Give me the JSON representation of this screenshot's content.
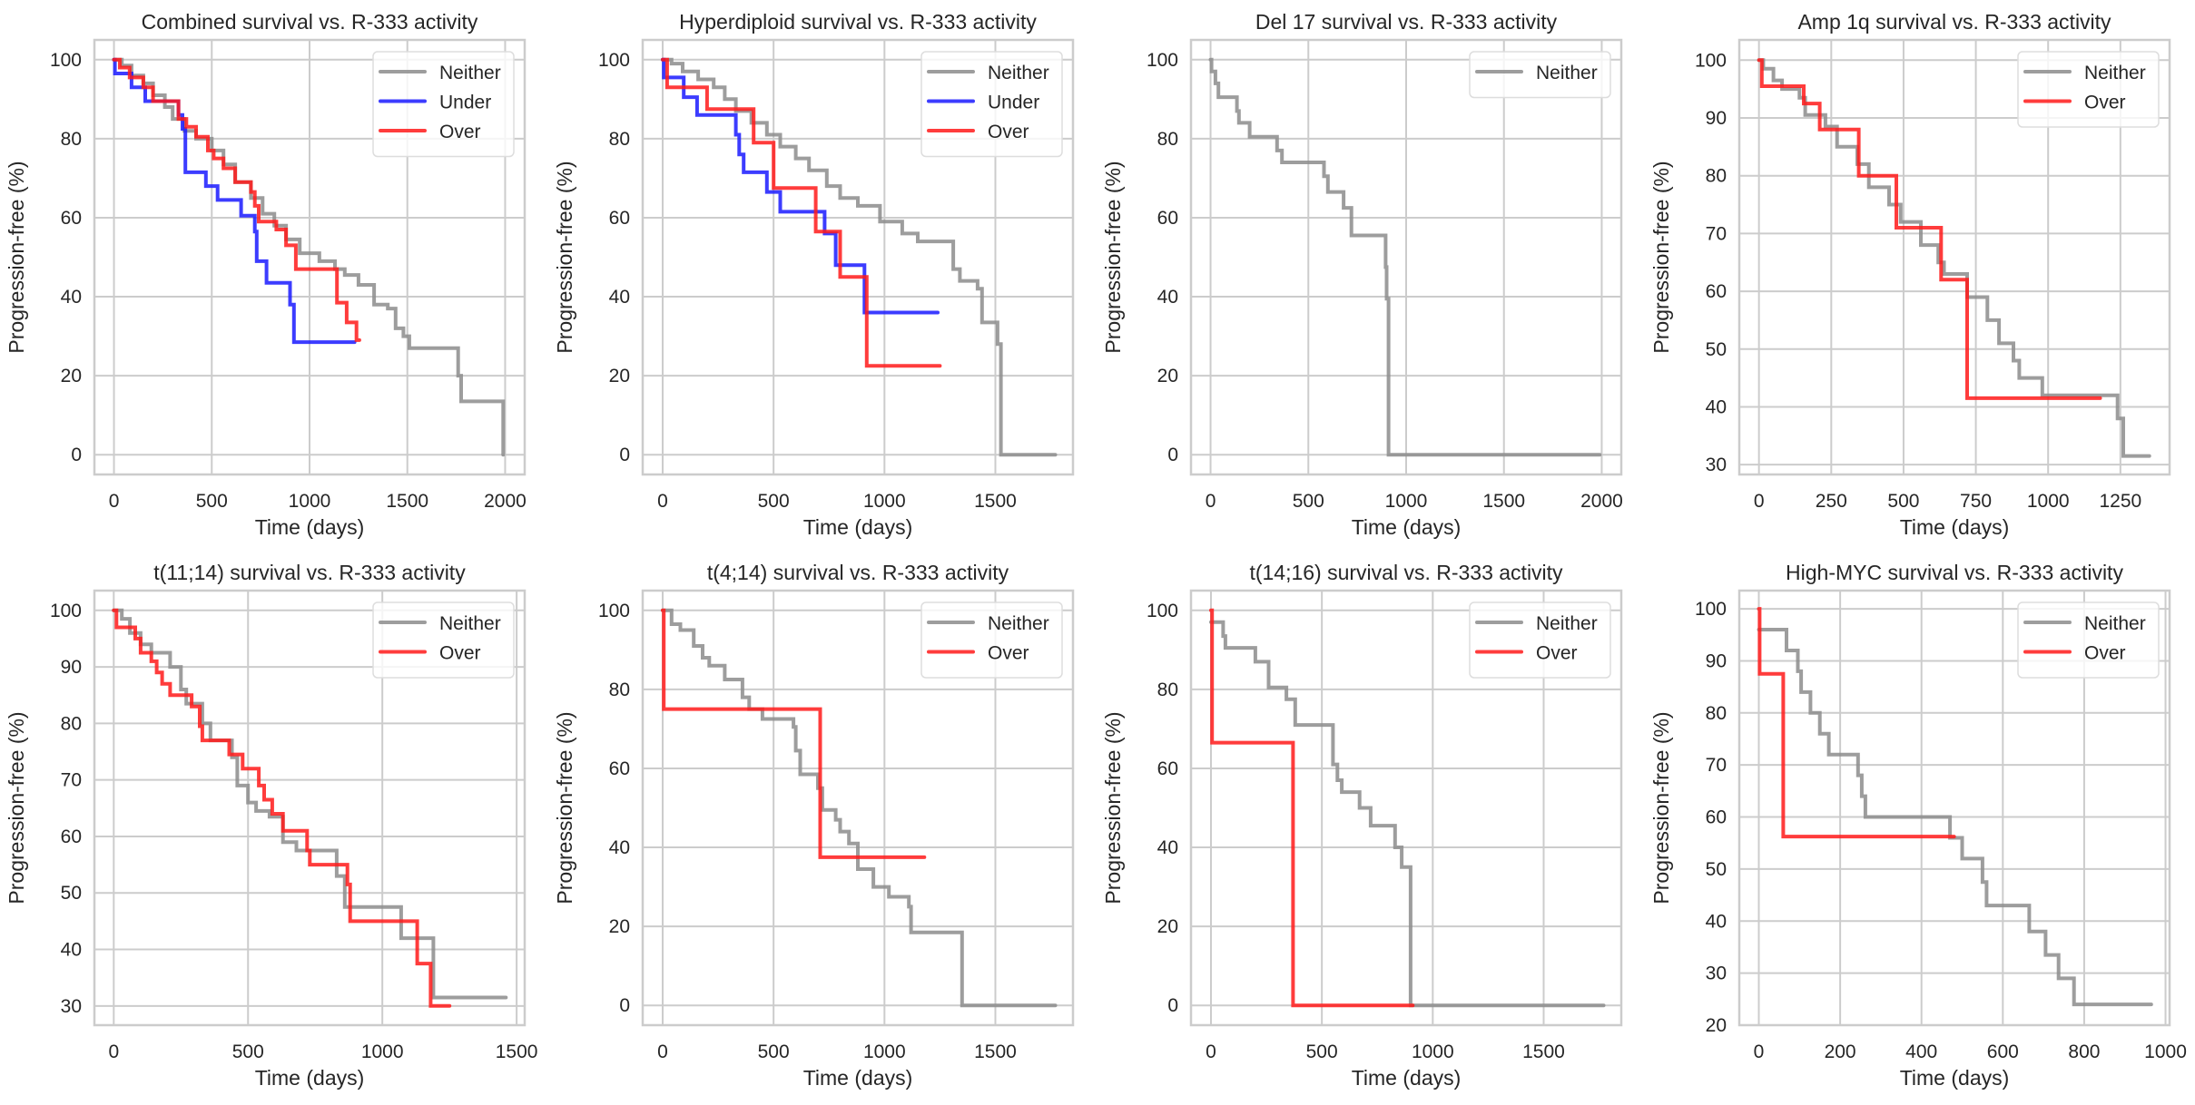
{
  "figure": {
    "domain": "Kaplan-Meier progression-free survival curves by R-333 activity",
    "colors": {
      "Neither": "#8c8c8c",
      "Under": "#1a1aff",
      "Over": "#ff1a1a",
      "grid": "#cccccc",
      "text": "#262626"
    }
  },
  "chart_data": [
    {
      "type": "line",
      "title": "Combined survival vs. R-333 activity",
      "xlabel": "Time (days)",
      "ylabel": "Progression-free (%)",
      "xlim": [
        -100,
        2100
      ],
      "ylim": [
        -5,
        105
      ],
      "xticks": [
        0,
        500,
        1000,
        1500,
        2000
      ],
      "yticks": [
        0,
        20,
        40,
        60,
        80,
        100
      ],
      "grid": true,
      "legend": "top-right",
      "series": [
        {
          "name": "Neither",
          "step": true,
          "x": [
            0,
            40,
            90,
            150,
            200,
            260,
            300,
            360,
            420,
            500,
            560,
            620,
            700,
            760,
            820,
            880,
            950,
            1050,
            1130,
            1180,
            1250,
            1330,
            1400,
            1440,
            1480,
            1510,
            1760,
            1775,
            1990
          ],
          "y": [
            100,
            98.5,
            96,
            94,
            91,
            88,
            85,
            82,
            80,
            77,
            73.5,
            69,
            65,
            61,
            58,
            54.5,
            51,
            49,
            47,
            45.5,
            43,
            38,
            37,
            32,
            30,
            27,
            20,
            13.5,
            0
          ]
        },
        {
          "name": "Under",
          "step": true,
          "x": [
            0,
            5,
            90,
            160,
            330,
            350,
            365,
            470,
            530,
            650,
            720,
            730,
            780,
            900,
            920,
            1230
          ],
          "y": [
            100,
            96.5,
            93,
            89.5,
            86,
            82.5,
            71.5,
            68,
            64.5,
            60.5,
            56.5,
            49,
            43.5,
            38,
            28.5,
            28.5
          ]
        },
        {
          "name": "Over",
          "step": true,
          "x": [
            0,
            30,
            80,
            150,
            200,
            330,
            370,
            420,
            480,
            510,
            560,
            620,
            700,
            720,
            740,
            830,
            880,
            930,
            1140,
            1190,
            1240,
            1255
          ],
          "y": [
            100,
            98,
            95.5,
            93,
            89.5,
            85,
            83,
            80.5,
            77,
            75,
            72.5,
            69,
            66.5,
            63,
            59,
            57,
            53,
            47,
            38.5,
            33.5,
            29,
            29
          ]
        }
      ]
    },
    {
      "type": "line",
      "title": "Hyperdiploid survival vs. R-333 activity",
      "xlabel": "Time (days)",
      "ylabel": "Progression-free (%)",
      "xlim": [
        -90,
        1850
      ],
      "ylim": [
        -5,
        105
      ],
      "xticks": [
        0,
        500,
        1000,
        1500
      ],
      "yticks": [
        0,
        20,
        40,
        60,
        80,
        100
      ],
      "grid": true,
      "legend": "top-right",
      "series": [
        {
          "name": "Neither",
          "step": true,
          "x": [
            0,
            40,
            90,
            160,
            230,
            280,
            330,
            400,
            470,
            530,
            600,
            660,
            740,
            800,
            880,
            980,
            1080,
            1150,
            1310,
            1340,
            1420,
            1440,
            1510,
            1525,
            1770
          ],
          "y": [
            100,
            99,
            97,
            95,
            93,
            90,
            87,
            84,
            81,
            78,
            75,
            72,
            68,
            65,
            63,
            59,
            56,
            54,
            47,
            44,
            42,
            33.5,
            28,
            0,
            0
          ]
        },
        {
          "name": "Under",
          "step": true,
          "x": [
            0,
            5,
            95,
            155,
            330,
            345,
            365,
            470,
            530,
            730,
            780,
            910,
            1240
          ],
          "y": [
            100,
            95.5,
            90.5,
            86,
            81,
            76,
            71.5,
            66.5,
            61.5,
            56,
            48,
            36,
            36
          ]
        },
        {
          "name": "Over",
          "step": true,
          "x": [
            0,
            20,
            200,
            410,
            500,
            690,
            800,
            920,
            1250
          ],
          "y": [
            100,
            93,
            87.5,
            79,
            67.5,
            56.5,
            45,
            22.5,
            22.5
          ]
        }
      ]
    },
    {
      "type": "line",
      "title": "Del 17 survival vs. R-333 activity",
      "xlabel": "Time (days)",
      "ylabel": "Progression-free (%)",
      "xlim": [
        -100,
        2100
      ],
      "ylim": [
        -5,
        105
      ],
      "xticks": [
        0,
        500,
        1000,
        1500,
        2000
      ],
      "yticks": [
        0,
        20,
        40,
        60,
        80,
        100
      ],
      "grid": true,
      "legend": "top-right",
      "series": [
        {
          "name": "Neither",
          "step": true,
          "x": [
            0,
            5,
            25,
            40,
            135,
            145,
            200,
            340,
            365,
            580,
            600,
            680,
            720,
            895,
            900,
            910,
            1990
          ],
          "y": [
            100,
            97,
            94,
            90.5,
            87,
            84,
            80.5,
            77,
            74,
            70.5,
            66.5,
            62.5,
            55.5,
            47.5,
            39.5,
            0,
            0
          ]
        }
      ]
    },
    {
      "type": "line",
      "title": "Amp 1q survival vs. R-333 activity",
      "xlabel": "Time (days)",
      "ylabel": "Progression-free (%)",
      "xlim": [
        -68,
        1420
      ],
      "ylim": [
        28.3,
        103.5
      ],
      "xticks": [
        0,
        250,
        500,
        750,
        1000,
        1250
      ],
      "yticks": [
        30,
        40,
        50,
        60,
        70,
        80,
        90,
        100
      ],
      "grid": true,
      "legend": "top-right",
      "series": [
        {
          "name": "Neither",
          "step": true,
          "x": [
            0,
            15,
            50,
            80,
            140,
            160,
            230,
            270,
            340,
            380,
            450,
            490,
            560,
            620,
            640,
            720,
            790,
            830,
            880,
            900,
            980,
            1240,
            1260,
            1350
          ],
          "y": [
            100,
            98.5,
            96.5,
            95,
            93.5,
            90.5,
            88.5,
            85,
            82,
            78,
            75,
            72,
            68,
            65,
            63,
            59,
            55,
            51,
            48,
            45,
            42,
            38,
            31.5,
            31.5
          ]
        },
        {
          "name": "Over",
          "step": true,
          "x": [
            0,
            10,
            155,
            210,
            345,
            475,
            630,
            720,
            1180
          ],
          "y": [
            100,
            95.5,
            92.5,
            88,
            80,
            71,
            62,
            41.5,
            41.5
          ]
        }
      ]
    },
    {
      "type": "line",
      "title": "t(11;14) survival vs. R-333 activity",
      "xlabel": "Time (days)",
      "ylabel": "Progression-free (%)",
      "xlim": [
        -72,
        1530
      ],
      "ylim": [
        26.6,
        103.5
      ],
      "xticks": [
        0,
        500,
        1000,
        1500
      ],
      "yticks": [
        30,
        40,
        50,
        60,
        70,
        80,
        90,
        100
      ],
      "grid": true,
      "legend": "top-right",
      "series": [
        {
          "name": "Neither",
          "step": true,
          "x": [
            0,
            30,
            60,
            100,
            140,
            210,
            250,
            270,
            330,
            360,
            440,
            460,
            500,
            530,
            580,
            630,
            680,
            830,
            860,
            1070,
            1190,
            1460
          ],
          "y": [
            100,
            98.5,
            96,
            94,
            92.5,
            90,
            86,
            83.5,
            80,
            77,
            74,
            69,
            66,
            64.5,
            63.5,
            59,
            57.5,
            53,
            47.5,
            42,
            31.5,
            31.5
          ]
        },
        {
          "name": "Over",
          "step": true,
          "x": [
            0,
            10,
            80,
            100,
            140,
            160,
            180,
            210,
            290,
            320,
            330,
            430,
            480,
            540,
            560,
            590,
            630,
            720,
            730,
            870,
            880,
            1130,
            1180,
            1250
          ],
          "y": [
            100,
            97,
            95,
            92.5,
            91,
            89,
            87,
            85,
            83,
            79.5,
            77,
            74.5,
            72,
            69,
            66.5,
            64,
            61,
            57.5,
            55,
            51.5,
            45,
            37.5,
            30,
            30
          ]
        }
      ]
    },
    {
      "type": "line",
      "title": "t(4;14) survival vs. R-333 activity",
      "xlabel": "Time (days)",
      "ylabel": "Progression-free (%)",
      "xlim": [
        -90,
        1850
      ],
      "ylim": [
        -5,
        105
      ],
      "xticks": [
        0,
        500,
        1000,
        1500
      ],
      "yticks": [
        0,
        20,
        40,
        60,
        80,
        100
      ],
      "grid": true,
      "legend": "top-right",
      "series": [
        {
          "name": "Neither",
          "step": true,
          "x": [
            0,
            40,
            80,
            140,
            180,
            210,
            280,
            360,
            390,
            450,
            590,
            600,
            620,
            700,
            720,
            780,
            800,
            840,
            880,
            950,
            1020,
            1110,
            1120,
            1350,
            1770
          ],
          "y": [
            100,
            96.5,
            95,
            91,
            88,
            86,
            82.5,
            78,
            75,
            72.5,
            70.5,
            64.5,
            58.5,
            55,
            49.5,
            47,
            44,
            41,
            34.5,
            30,
            27.5,
            25,
            18.5,
            0,
            0
          ]
        },
        {
          "name": "Over",
          "step": true,
          "x": [
            0,
            5,
            710,
            1180
          ],
          "y": [
            100,
            75,
            37.5,
            37.5
          ]
        }
      ]
    },
    {
      "type": "line",
      "title": "t(14;16) survival vs. R-333 activity",
      "xlabel": "Time (days)",
      "ylabel": "Progression-free (%)",
      "xlim": [
        -90,
        1850
      ],
      "ylim": [
        -5,
        105
      ],
      "xticks": [
        0,
        500,
        1000,
        1500
      ],
      "yticks": [
        0,
        20,
        40,
        60,
        80,
        100
      ],
      "grid": true,
      "legend": "top-right",
      "series": [
        {
          "name": "Neither",
          "step": true,
          "x": [
            0,
            55,
            65,
            200,
            260,
            340,
            380,
            550,
            570,
            590,
            670,
            720,
            830,
            860,
            900,
            1770
          ],
          "y": [
            97,
            93.5,
            90.5,
            87,
            80.5,
            77.5,
            71,
            61,
            57,
            54,
            50,
            45.5,
            40,
            35,
            0,
            0
          ]
        },
        {
          "name": "Over",
          "step": true,
          "x": [
            0,
            5,
            370,
            910
          ],
          "y": [
            100,
            66.5,
            0,
            0
          ]
        }
      ]
    },
    {
      "type": "line",
      "title": "High-MYC survival vs. R-333 activity",
      "xlabel": "Time (days)",
      "ylabel": "Progression-free (%)",
      "xlim": [
        -48,
        1010
      ],
      "ylim": [
        20,
        103.5
      ],
      "xticks": [
        0,
        200,
        400,
        600,
        800,
        1000
      ],
      "yticks": [
        20,
        30,
        40,
        50,
        60,
        70,
        80,
        90,
        100
      ],
      "grid": true,
      "legend": "top-right",
      "series": [
        {
          "name": "Neither",
          "step": true,
          "x": [
            0,
            68,
            96,
            104,
            127,
            150,
            172,
            244,
            253,
            262,
            470,
            500,
            550,
            560,
            665,
            705,
            737,
            775,
            965
          ],
          "y": [
            96,
            92,
            88,
            84,
            80,
            76,
            72,
            68,
            64,
            60,
            56,
            52,
            47.5,
            43,
            38,
            33.5,
            29,
            24,
            24
          ]
        },
        {
          "name": "Over",
          "step": true,
          "x": [
            0,
            2,
            60,
            480
          ],
          "y": [
            100,
            87.5,
            56.25,
            56.25
          ]
        }
      ]
    }
  ]
}
